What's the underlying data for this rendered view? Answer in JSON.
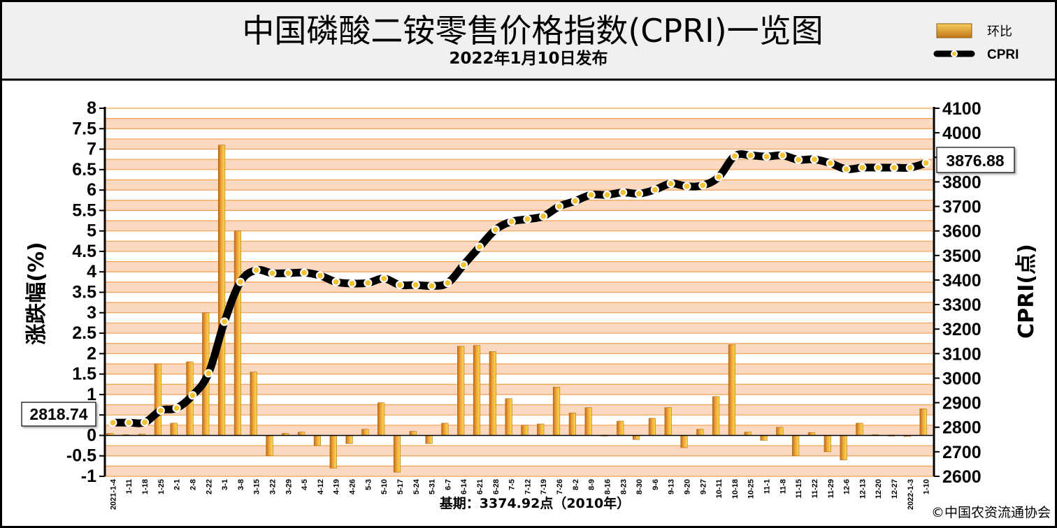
{
  "header": {
    "title": "中国磷酸二铵零售价格指数(CPRI)一览图",
    "subtitle": "2022年1月10日发布"
  },
  "footer": {
    "base_period": "基期：3374.92点（2010年）",
    "copyright": "©中国农资流通协会"
  },
  "callouts": {
    "start": "2818.74",
    "end": "3876.88"
  },
  "colors": {
    "bar": "#e8921e",
    "line": "#000000",
    "marker": "#f2c230",
    "grid": "#f5a050",
    "band": "#fbd9c0"
  },
  "chart_data": {
    "type": "bar+line",
    "xlabel": "",
    "ylabel_left": "涨跌幅(%)",
    "ylabel_right": "CPRI(点)",
    "ylim_left": [
      -1,
      8
    ],
    "ylim_right": [
      2600,
      4100
    ],
    "yticks_left": [
      "8",
      "7.5",
      "7",
      "6.5",
      "6",
      "5.5",
      "5",
      "4.5",
      "4",
      "3.5",
      "3",
      "2.5",
      "2",
      "1.5",
      "1",
      "0.5",
      "0",
      "-0.5",
      "-1"
    ],
    "yticks_right": [
      "4100",
      "4000",
      "3900",
      "3800",
      "3700",
      "3600",
      "3500",
      "3400",
      "3300",
      "3200",
      "3100",
      "3000",
      "2900",
      "2800",
      "2700",
      "2600"
    ],
    "categories": [
      "2021-1-4",
      "1-11",
      "1-18",
      "1-25",
      "2-1",
      "2-8",
      "2-22",
      "3-1",
      "3-8",
      "3-15",
      "3-22",
      "3-29",
      "4-5",
      "4-12",
      "4-19",
      "4-26",
      "5-3",
      "5-10",
      "5-17",
      "5-24",
      "5-31",
      "6-7",
      "6-14",
      "6-21",
      "6-28",
      "7-5",
      "7-12",
      "7-19",
      "7-26",
      "8-2",
      "8-9",
      "8-16",
      "8-23",
      "8-30",
      "9-6",
      "9-13",
      "9-20",
      "9-27",
      "10-11",
      "10-18",
      "10-25",
      "11-1",
      "11-8",
      "11-15",
      "11-22",
      "11-29",
      "12-6",
      "12-13",
      "12-20",
      "12-27",
      "2022-1-3",
      "1-10"
    ],
    "series": [
      {
        "name": "环比",
        "type": "bar",
        "axis": "left",
        "values": [
          0.05,
          0.02,
          0.03,
          1.75,
          0.3,
          1.8,
          3.0,
          7.1,
          5.0,
          1.55,
          -0.5,
          0.05,
          0.08,
          -0.25,
          -0.8,
          -0.2,
          0.15,
          0.8,
          -0.9,
          0.1,
          -0.2,
          0.3,
          2.18,
          2.2,
          2.05,
          0.9,
          0.25,
          0.28,
          1.18,
          0.55,
          0.68,
          0.01,
          0.35,
          -0.1,
          0.42,
          0.68,
          -0.3,
          0.15,
          0.95,
          2.22,
          0.08,
          -0.12,
          0.2,
          -0.5,
          0.07,
          -0.4,
          -0.6,
          0.3,
          0.02,
          0.01,
          -0.01,
          0.65
        ]
      },
      {
        "name": "CPRI",
        "type": "line",
        "axis": "right",
        "values": [
          2818.74,
          2819,
          2820,
          2868,
          2878,
          2930,
          3020,
          3230,
          3392,
          3440,
          3428,
          3428,
          3430,
          3418,
          3392,
          3386,
          3388,
          3406,
          3380,
          3380,
          3376,
          3388,
          3462,
          3535,
          3605,
          3638,
          3648,
          3660,
          3700,
          3722,
          3747,
          3747,
          3757,
          3752,
          3768,
          3793,
          3782,
          3786,
          3820,
          3905,
          3908,
          3903,
          3908,
          3890,
          3892,
          3876,
          3852,
          3858,
          3858,
          3858,
          3858,
          3876.88
        ]
      }
    ],
    "legend": "top-right",
    "grid": true
  }
}
